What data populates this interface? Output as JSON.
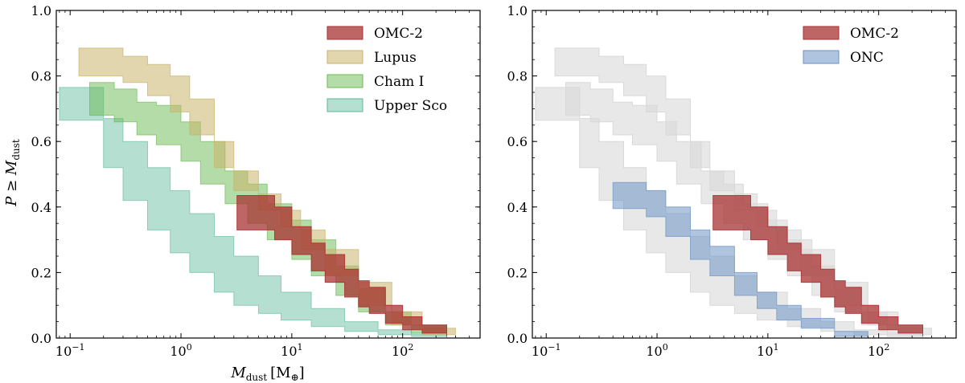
{
  "chart_data": [
    {
      "type": "area",
      "panel": "left",
      "xscale": "log",
      "xlim": [
        0.075,
        500
      ],
      "ylim": [
        0,
        1.0
      ],
      "xlabel_main": "M",
      "xlabel_sub": "dust",
      "xlabel_unit_prefix": "[M",
      "xlabel_unit_sub": "⊕",
      "xlabel_unit_suffix": "]",
      "ylabel_prefix": "P ≥ M",
      "ylabel_sub": "dust",
      "yticks": [
        {
          "value": 0.0,
          "label": "0.0"
        },
        {
          "value": 0.2,
          "label": "0.2"
        },
        {
          "value": 0.4,
          "label": "0.4"
        },
        {
          "value": 0.6,
          "label": "0.6"
        },
        {
          "value": 0.8,
          "label": "0.8"
        },
        {
          "value": 1.0,
          "label": "1.0"
        }
      ],
      "xticks": [
        {
          "value": 0.1,
          "base": "10",
          "exp": "−1"
        },
        {
          "value": 1,
          "base": "10",
          "exp": "0"
        },
        {
          "value": 10,
          "base": "10",
          "exp": "1"
        },
        {
          "value": 100,
          "base": "10",
          "exp": "2"
        }
      ],
      "legend_position": "top-right",
      "series": [
        {
          "name": "OMC-2",
          "color": "#a83232",
          "opacity": 0.75,
          "x": [
            3.2,
            5,
            7,
            10,
            15,
            20,
            30,
            40,
            50,
            70,
            100,
            150,
            250
          ],
          "upper": [
            0.435,
            0.435,
            0.4,
            0.34,
            0.29,
            0.255,
            0.21,
            0.175,
            0.155,
            0.1,
            0.065,
            0.04,
            0.03
          ],
          "lower": [
            0.33,
            0.33,
            0.3,
            0.255,
            0.205,
            0.17,
            0.125,
            0.095,
            0.075,
            0.045,
            0.025,
            0.015,
            0.005
          ]
        },
        {
          "name": "Lupus",
          "color": "#c8b46a",
          "opacity": 0.55,
          "x": [
            0.12,
            0.2,
            0.3,
            0.5,
            0.8,
            1.2,
            2,
            3,
            5,
            8,
            12,
            20,
            40,
            80,
            150,
            300
          ],
          "upper": [
            0.885,
            0.885,
            0.86,
            0.835,
            0.8,
            0.73,
            0.6,
            0.51,
            0.44,
            0.39,
            0.33,
            0.27,
            0.17,
            0.08,
            0.03,
            0.01
          ],
          "lower": [
            0.8,
            0.8,
            0.78,
            0.74,
            0.69,
            0.62,
            0.52,
            0.45,
            0.39,
            0.34,
            0.27,
            0.19,
            0.1,
            0.04,
            0.01,
            0.0
          ]
        },
        {
          "name": "Cham I",
          "color": "#6aba52",
          "opacity": 0.5,
          "x": [
            0.15,
            0.25,
            0.4,
            0.6,
            1,
            1.5,
            2.5,
            4,
            6,
            10,
            15,
            25,
            40,
            70,
            120,
            250
          ],
          "upper": [
            0.78,
            0.76,
            0.72,
            0.71,
            0.66,
            0.6,
            0.51,
            0.47,
            0.41,
            0.36,
            0.3,
            0.22,
            0.15,
            0.08,
            0.04,
            0.01
          ],
          "lower": [
            0.68,
            0.66,
            0.62,
            0.59,
            0.54,
            0.47,
            0.41,
            0.35,
            0.3,
            0.24,
            0.19,
            0.13,
            0.08,
            0.04,
            0.015,
            0.0
          ]
        },
        {
          "name": "Upper Sco",
          "color": "#5ab89a",
          "opacity": 0.45,
          "x": [
            0.08,
            0.12,
            0.2,
            0.3,
            0.5,
            0.8,
            1.2,
            2,
            3,
            5,
            8,
            15,
            30,
            60,
            120,
            250
          ],
          "upper": [
            0.765,
            0.765,
            0.67,
            0.6,
            0.52,
            0.45,
            0.38,
            0.31,
            0.25,
            0.19,
            0.14,
            0.09,
            0.05,
            0.025,
            0.012,
            0.005
          ],
          "lower": [
            0.665,
            0.665,
            0.52,
            0.42,
            0.33,
            0.26,
            0.2,
            0.14,
            0.1,
            0.075,
            0.055,
            0.035,
            0.02,
            0.01,
            0.005,
            0.0
          ]
        }
      ]
    },
    {
      "type": "area",
      "panel": "right",
      "xscale": "log",
      "xlim": [
        0.075,
        500
      ],
      "ylim": [
        0,
        1.0
      ],
      "yticks": [
        {
          "value": 0.0,
          "label": "0.0"
        },
        {
          "value": 0.2,
          "label": "0.2"
        },
        {
          "value": 0.4,
          "label": "0.4"
        },
        {
          "value": 0.6,
          "label": "0.6"
        },
        {
          "value": 0.8,
          "label": "0.8"
        },
        {
          "value": 1.0,
          "label": "1.0"
        }
      ],
      "xticks": [
        {
          "value": 0.1,
          "base": "10",
          "exp": "−1"
        },
        {
          "value": 1,
          "base": "10",
          "exp": "0"
        },
        {
          "value": 10,
          "base": "10",
          "exp": "1"
        },
        {
          "value": 100,
          "base": "10",
          "exp": "2"
        }
      ],
      "legend_position": "top-right",
      "background_series_color": "#d9d9d9",
      "background_series": [
        "Lupus",
        "Cham I",
        "Upper Sco"
      ],
      "series": [
        {
          "name": "OMC-2",
          "color": "#a83232",
          "opacity": 0.75,
          "x": [
            3.2,
            5,
            7,
            10,
            15,
            20,
            30,
            40,
            50,
            70,
            100,
            150,
            250
          ],
          "upper": [
            0.435,
            0.435,
            0.4,
            0.34,
            0.29,
            0.255,
            0.21,
            0.175,
            0.155,
            0.1,
            0.065,
            0.04,
            0.03
          ],
          "lower": [
            0.33,
            0.33,
            0.3,
            0.255,
            0.205,
            0.17,
            0.125,
            0.095,
            0.075,
            0.045,
            0.025,
            0.015,
            0.005
          ]
        },
        {
          "name": "ONC",
          "color": "#6b93c4",
          "opacity": 0.55,
          "x": [
            0.4,
            0.6,
            0.8,
            1.2,
            2,
            3,
            5,
            8,
            12,
            20,
            40,
            80
          ],
          "upper": [
            0.475,
            0.475,
            0.45,
            0.4,
            0.33,
            0.28,
            0.2,
            0.14,
            0.1,
            0.06,
            0.02,
            0.0
          ],
          "lower": [
            0.395,
            0.395,
            0.37,
            0.31,
            0.24,
            0.19,
            0.13,
            0.09,
            0.055,
            0.03,
            0.005,
            0.0
          ]
        }
      ]
    }
  ]
}
